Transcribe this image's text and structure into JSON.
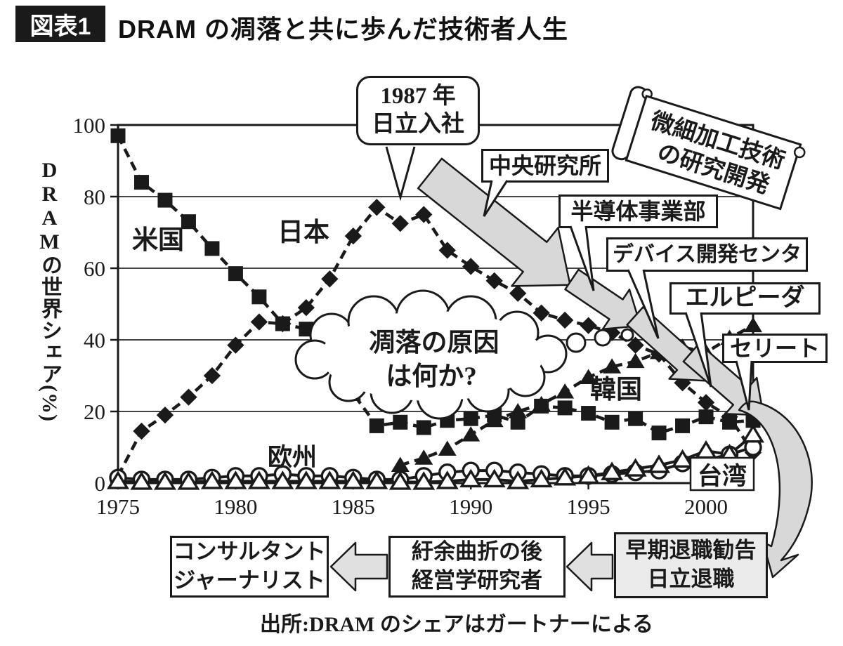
{
  "header": {
    "figure_label": "図表1",
    "title": "DRAM の凋落と共に歩んだ技術者人生"
  },
  "chart_data": {
    "type": "line",
    "x": [
      1975,
      1976,
      1977,
      1978,
      1979,
      1980,
      1981,
      1982,
      1983,
      1984,
      1985,
      1986,
      1987,
      1988,
      1989,
      1990,
      1991,
      1992,
      1993,
      1994,
      1995,
      1996,
      1997,
      1998,
      1999,
      2000,
      2001,
      2002
    ],
    "xticks": [
      1975,
      1980,
      1985,
      1990,
      1995,
      2000
    ],
    "yticks": [
      0,
      20,
      40,
      60,
      80,
      100
    ],
    "ylim": [
      0,
      100
    ],
    "ylabel": "DRAMの世界シェア(%)",
    "grid": "horizontal",
    "legend": "inline-labels",
    "series": [
      {
        "name": "米国",
        "marker": "square",
        "marker_fill": "filled",
        "values": [
          97,
          84,
          79,
          73,
          65.5,
          58.5,
          52,
          44.5,
          43,
          42,
          25,
          16,
          17,
          15.5,
          17.5,
          18,
          19,
          17,
          21.5,
          21,
          19.5,
          17,
          18,
          14,
          16,
          18.5,
          17,
          17.5
        ]
      },
      {
        "name": "日本",
        "marker": "diamond",
        "marker_fill": "filled",
        "values": [
          2,
          14.5,
          19,
          24,
          30,
          38.5,
          45,
          44.5,
          49,
          57,
          69,
          77,
          72.5,
          75,
          65,
          60.5,
          56.5,
          53,
          47.5,
          45.5,
          44,
          42,
          38.5,
          36,
          28,
          22.5,
          18.5,
          8.5
        ]
      },
      {
        "name": "韓国",
        "marker": "triangle",
        "marker_fill": "filled",
        "values": [
          null,
          null,
          null,
          null,
          null,
          null,
          null,
          null,
          null,
          null,
          null,
          null,
          5,
          7,
          9.5,
          13.5,
          17.5,
          20,
          22,
          25.5,
          29.5,
          32.5,
          34,
          36.5,
          38,
          36.5,
          40.5,
          44
        ]
      },
      {
        "name": "欧州",
        "marker": "circle",
        "marker_fill": "open",
        "values": [
          1.5,
          1,
          1,
          1,
          1.5,
          2,
          2,
          2.5,
          2,
          2,
          1.5,
          1,
          1,
          2,
          3,
          3.5,
          3.5,
          3,
          2.5,
          2,
          2,
          2.5,
          3,
          3.5,
          5.5,
          6.5,
          8,
          10
        ]
      },
      {
        "name": "台湾",
        "marker": "triangle",
        "marker_fill": "open",
        "values": [
          0.5,
          0.3,
          0.3,
          0.3,
          0.5,
          0.5,
          0.5,
          0.5,
          0.5,
          0.5,
          0.5,
          0.5,
          0.3,
          0.3,
          0.5,
          1,
          1,
          0.5,
          1,
          1.5,
          2,
          3,
          4,
          5,
          6.5,
          9,
          8,
          13.5
        ]
      }
    ]
  },
  "annotations": {
    "join_1987": {
      "line1": "1987 年",
      "line2": "日立入社"
    },
    "central_lab": {
      "label": "中央研究所"
    },
    "scroll_banner": {
      "line1": "微細加工技術",
      "line2": "の研究開発"
    },
    "semiconductor_div": {
      "label": "半導体事業部"
    },
    "device_center": {
      "label": "デバイス開発センタ"
    },
    "elpida": {
      "label": "エルピーダ"
    },
    "selete": {
      "label": "セリート"
    },
    "thought_cloud": {
      "line1": "凋落の原因",
      "line2": "は何か?"
    }
  },
  "career_flow": {
    "consultant": {
      "line1": "コンサルタント",
      "line2": "ジャーナリスト"
    },
    "scholar": {
      "line1": "紆余曲折の後",
      "line2": "経営学研究者"
    },
    "retirement": {
      "line1": "早期退職勧告",
      "line2": "日立退職"
    }
  },
  "source_note": "出所:DRAM のシェアはガートナーによる"
}
